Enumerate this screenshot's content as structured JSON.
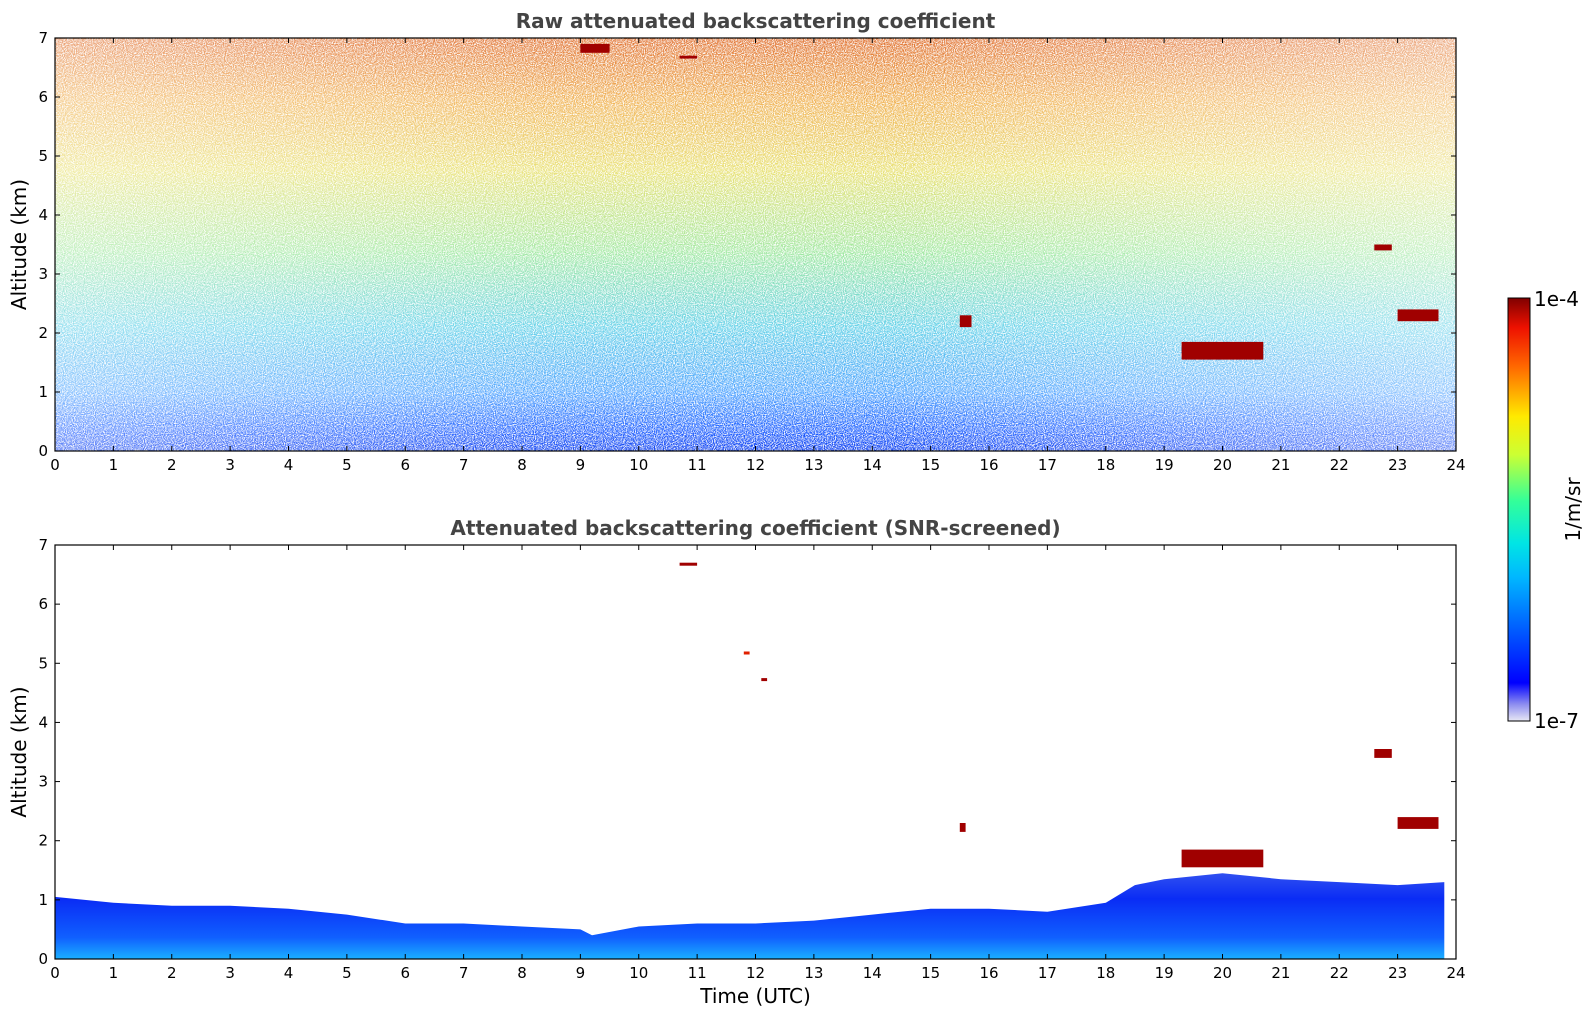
{
  "chart_data": [
    {
      "type": "heatmap",
      "title": "Raw attenuated backscattering coefficient",
      "xlabel": "",
      "ylabel": "Altitude (km)",
      "xlim": [
        0,
        24
      ],
      "ylim": [
        0,
        7
      ],
      "xticks": [
        "0",
        "1",
        "2",
        "3",
        "4",
        "5",
        "6",
        "7",
        "8",
        "9",
        "10",
        "11",
        "12",
        "13",
        "14",
        "15",
        "16",
        "17",
        "18",
        "19",
        "20",
        "21",
        "22",
        "23",
        "24"
      ],
      "yticks": [
        "0",
        "1",
        "2",
        "3",
        "4",
        "5",
        "6",
        "7"
      ],
      "colorbar": {
        "label": "1/m/sr",
        "min_label": "1e-7",
        "max_label": "1e-4",
        "colormap": "jet"
      },
      "features": [
        {
          "t": [
            19.3,
            20.7
          ],
          "alt": [
            1.55,
            1.85
          ],
          "level": "max"
        },
        {
          "t": [
            22.6,
            22.9
          ],
          "alt": [
            3.4,
            3.5
          ],
          "level": "max"
        },
        {
          "t": [
            23.0,
            23.7
          ],
          "alt": [
            2.2,
            2.4
          ],
          "level": "max"
        },
        {
          "t": [
            15.5,
            15.7
          ],
          "alt": [
            2.1,
            2.3
          ],
          "level": "max"
        },
        {
          "t": [
            9.0,
            9.5
          ],
          "alt": [
            6.75,
            6.9
          ],
          "level": "max"
        },
        {
          "t": [
            10.7,
            11.0
          ],
          "alt": [
            6.65,
            6.7
          ],
          "level": "max"
        }
      ]
    },
    {
      "type": "heatmap",
      "title": "Attenuated backscattering coefficient (SNR-screened)",
      "xlabel": "Time (UTC)",
      "ylabel": "Altitude (km)",
      "xlim": [
        0,
        24
      ],
      "ylim": [
        0,
        7
      ],
      "xticks": [
        "0",
        "1",
        "2",
        "3",
        "4",
        "5",
        "6",
        "7",
        "8",
        "9",
        "10",
        "11",
        "12",
        "13",
        "14",
        "15",
        "16",
        "17",
        "18",
        "19",
        "20",
        "21",
        "22",
        "23",
        "24"
      ],
      "yticks": [
        "0",
        "1",
        "2",
        "3",
        "4",
        "5",
        "6",
        "7"
      ],
      "boundary_layer_top_km": [
        [
          0,
          1.05
        ],
        [
          1,
          0.95
        ],
        [
          2,
          0.9
        ],
        [
          3,
          0.9
        ],
        [
          4,
          0.85
        ],
        [
          5,
          0.75
        ],
        [
          6,
          0.6
        ],
        [
          7,
          0.6
        ],
        [
          8,
          0.55
        ],
        [
          9,
          0.5
        ],
        [
          9.2,
          0.4
        ],
        [
          10,
          0.55
        ],
        [
          11,
          0.6
        ],
        [
          12,
          0.6
        ],
        [
          13,
          0.65
        ],
        [
          14,
          0.75
        ],
        [
          15,
          0.85
        ],
        [
          16,
          0.85
        ],
        [
          17,
          0.8
        ],
        [
          18,
          0.95
        ],
        [
          18.5,
          1.25
        ],
        [
          19,
          1.35
        ],
        [
          20,
          1.45
        ],
        [
          21,
          1.35
        ],
        [
          22,
          1.3
        ],
        [
          23,
          1.25
        ],
        [
          23.8,
          1.3
        ]
      ],
      "features": [
        {
          "t": [
            19.3,
            20.7
          ],
          "alt": [
            1.55,
            1.85
          ],
          "level": "max"
        },
        {
          "t": [
            22.6,
            22.9
          ],
          "alt": [
            3.4,
            3.55
          ],
          "level": "max"
        },
        {
          "t": [
            23.0,
            23.7
          ],
          "alt": [
            2.2,
            2.4
          ],
          "level": "max"
        },
        {
          "t": [
            15.5,
            15.6
          ],
          "alt": [
            2.15,
            2.3
          ],
          "level": "max"
        },
        {
          "t": [
            10.7,
            11.0
          ],
          "alt": [
            6.65,
            6.7
          ],
          "level": "max"
        },
        {
          "t": [
            11.8,
            11.9
          ],
          "alt": [
            5.15,
            5.2
          ],
          "level": "high"
        },
        {
          "t": [
            12.1,
            12.2
          ],
          "alt": [
            4.7,
            4.75
          ],
          "level": "max"
        }
      ]
    }
  ]
}
